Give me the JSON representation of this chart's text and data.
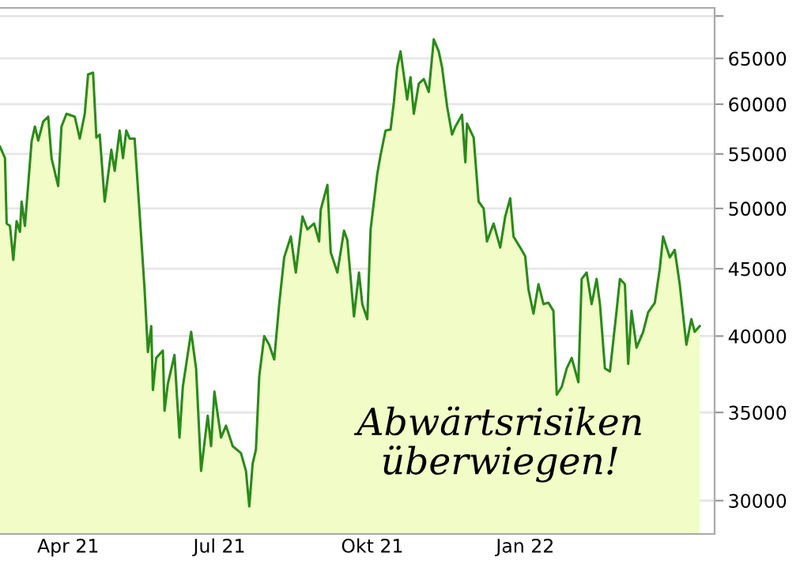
{
  "chart_data": {
    "type": "area",
    "x": [
      "2021-02-19",
      "2021-02-22",
      "2021-02-23",
      "2021-02-25",
      "2021-02-27",
      "2021-03-01",
      "2021-03-03",
      "2021-03-04",
      "2021-03-06",
      "2021-03-10",
      "2021-03-12",
      "2021-03-14",
      "2021-03-17",
      "2021-03-20",
      "2021-03-22",
      "2021-03-26",
      "2021-03-28",
      "2021-03-31",
      "2021-04-05",
      "2021-04-08",
      "2021-04-11",
      "2021-04-13",
      "2021-04-16",
      "2021-04-18",
      "2021-04-20",
      "2021-04-23",
      "2021-04-27",
      "2021-04-29",
      "2021-05-02",
      "2021-05-04",
      "2021-05-06",
      "2021-05-08",
      "2021-05-11",
      "2021-05-14",
      "2021-05-17",
      "2021-05-19",
      "2021-05-21",
      "2021-05-22",
      "2021-05-24",
      "2021-05-28",
      "2021-05-29",
      "2021-05-31",
      "2021-06-04",
      "2021-06-07",
      "2021-06-09",
      "2021-06-14",
      "2021-06-17",
      "2021-06-20",
      "2021-06-24",
      "2021-06-26",
      "2021-06-28",
      "2021-07-02",
      "2021-07-05",
      "2021-07-09",
      "2021-07-14",
      "2021-07-17",
      "2021-07-19",
      "2021-07-21",
      "2021-07-23",
      "2021-07-25",
      "2021-07-28",
      "2021-07-31",
      "2021-08-03",
      "2021-08-06",
      "2021-08-09",
      "2021-08-13",
      "2021-08-16",
      "2021-08-20",
      "2021-08-23",
      "2021-08-27",
      "2021-08-30",
      "2021-08-31",
      "2021-09-04",
      "2021-09-06",
      "2021-09-10",
      "2021-09-14",
      "2021-09-16",
      "2021-09-20",
      "2021-09-23",
      "2021-09-25",
      "2021-09-28",
      "2021-09-30",
      "2021-10-04",
      "2021-10-06",
      "2021-10-09",
      "2021-10-12",
      "2021-10-14",
      "2021-10-16",
      "2021-10-18",
      "2021-10-22",
      "2021-10-24",
      "2021-10-26",
      "2021-10-29",
      "2021-11-01",
      "2021-11-04",
      "2021-11-07",
      "2021-11-10",
      "2021-11-12",
      "2021-11-15",
      "2021-11-18",
      "2021-11-20",
      "2021-11-24",
      "2021-11-26",
      "2021-11-27",
      "2021-12-01",
      "2021-12-04",
      "2021-12-07",
      "2021-12-09",
      "2021-12-13",
      "2021-12-17",
      "2021-12-20",
      "2021-12-23",
      "2021-12-25",
      "2021-12-29",
      "2022-01-01",
      "2022-01-03",
      "2022-01-06",
      "2022-01-09",
      "2022-01-12",
      "2022-01-15",
      "2022-01-18",
      "2022-01-20",
      "2022-01-23",
      "2022-01-26",
      "2022-01-29",
      "2022-02-02",
      "2022-02-04",
      "2022-02-07",
      "2022-02-10",
      "2022-02-13",
      "2022-02-15",
      "2022-02-18",
      "2022-02-21",
      "2022-02-25",
      "2022-02-27",
      "2022-03-02",
      "2022-03-04",
      "2022-03-06",
      "2022-03-09",
      "2022-03-13",
      "2022-03-16",
      "2022-03-20",
      "2022-03-23",
      "2022-03-25",
      "2022-03-29",
      "2022-04-01",
      "2022-04-04",
      "2022-04-08",
      "2022-04-11",
      "2022-04-13",
      "2022-04-16"
    ],
    "series": [
      {
        "color": "#2a8a1a",
        "values": [
          55700,
          54600,
          48700,
          48500,
          45700,
          48900,
          48000,
          50600,
          48500,
          56200,
          57700,
          56300,
          58200,
          58700,
          54600,
          52000,
          57700,
          59000,
          58700,
          56500,
          59000,
          63200,
          63400,
          56600,
          56900,
          50600,
          55400,
          53400,
          57300,
          54600,
          57300,
          56500,
          56500,
          49600,
          43400,
          38900,
          40700,
          36400,
          38500,
          39000,
          35100,
          36800,
          38700,
          33500,
          36600,
          40300,
          37800,
          31600,
          34800,
          33000,
          36300,
          33500,
          34200,
          33000,
          32600,
          31600,
          29700,
          32000,
          32800,
          37300,
          40000,
          39400,
          38400,
          42300,
          45900,
          47600,
          44700,
          49300,
          48200,
          48700,
          47200,
          49900,
          52100,
          46300,
          44700,
          48100,
          47300,
          41400,
          44700,
          42300,
          41200,
          48200,
          53100,
          54900,
          57300,
          57400,
          60200,
          64000,
          65800,
          60500,
          62900,
          59000,
          62200,
          62700,
          61300,
          67200,
          65800,
          64000,
          59800,
          56900,
          57700,
          58900,
          54200,
          58000,
          56600,
          50600,
          50000,
          47200,
          48700,
          46700,
          49300,
          50900,
          47600,
          46700,
          46000,
          43400,
          41600,
          43800,
          42300,
          42400,
          41800,
          36100,
          36600,
          37800,
          38500,
          36900,
          44200,
          44700,
          42300,
          44200,
          42300,
          37800,
          37600,
          41800,
          44200,
          43800,
          38100,
          41800,
          39200,
          40300,
          41700,
          42400,
          45000,
          47600,
          45900,
          46500,
          43800,
          39400,
          41200,
          40300,
          40700
        ]
      }
    ],
    "log": true,
    "xlim": [
      "2021-02-19",
      "2022-04-25"
    ],
    "ylim": [
      28300,
      71000
    ],
    "xticks": [
      {
        "value": "2021-04-01",
        "label": "Apr 21"
      },
      {
        "value": "2021-07-01",
        "label": "Jul 21"
      },
      {
        "value": "2021-10-01",
        "label": "Okt 21"
      },
      {
        "value": "2022-01-01",
        "label": "Jan 22"
      },
      {
        "value": "2022-04-01",
        "label": null
      }
    ],
    "yticks": [
      30000,
      35000,
      40000,
      45000,
      50000,
      55000,
      60000,
      65000,
      {
        "value": 70000,
        "label": null
      }
    ],
    "grid": "y",
    "annotations": [
      "Abwärtsrisiken\nüberwiegen!"
    ]
  }
}
